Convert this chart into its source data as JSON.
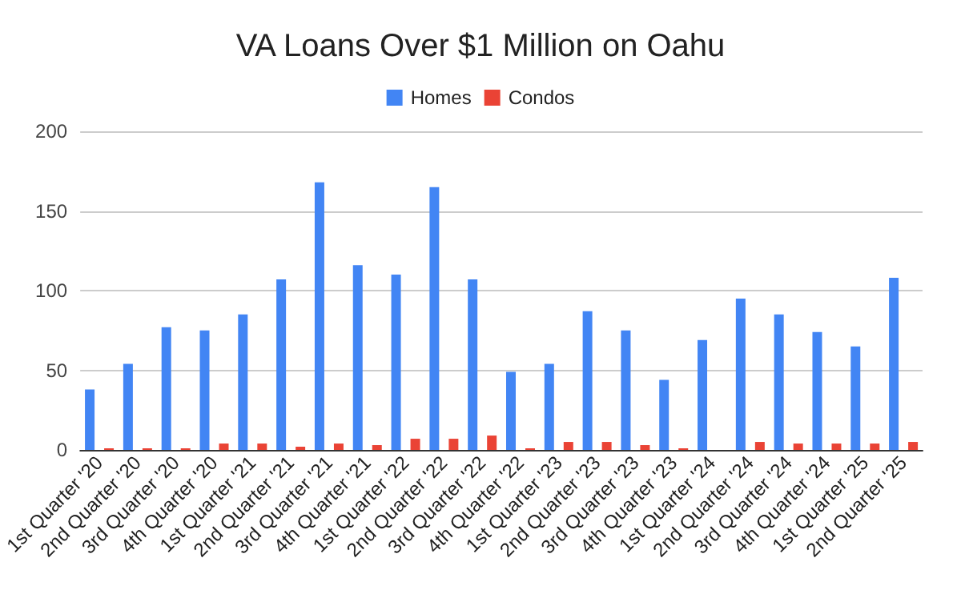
{
  "chart_data": {
    "type": "bar",
    "title": "VA Loans Over $1 Million on Oahu",
    "categories": [
      "1st Quarter '20",
      "2nd Quarter '20",
      "3rd Quarter '20",
      "4th Quarter '20",
      "1st Quarter '21",
      "2nd Quarter '21",
      "3rd Quarter '21",
      "4th Quarter '21",
      "1st Quarter '22",
      "2nd Quarter '22",
      "3rd Quarter '22",
      "4th Quarter '22",
      "1st Quarter '23",
      "2nd Quarter '23",
      "3rd Quarter '23",
      "4th Quarter '23",
      "1st Quarter '24",
      "2nd Quarter '24",
      "3rd Quarter '24",
      "4th Quarter '24",
      "1st Quarter '25",
      "2nd Quarter '25"
    ],
    "series": [
      {
        "name": "Homes",
        "color": "#4285f4",
        "values": [
          38,
          54,
          77,
          75,
          85,
          107,
          168,
          116,
          110,
          165,
          107,
          49,
          54,
          87,
          75,
          44,
          69,
          95,
          85,
          74,
          65,
          108
        ]
      },
      {
        "name": "Condos",
        "color": "#ea4335",
        "values": [
          1,
          1,
          1,
          4,
          4,
          2,
          4,
          3,
          7,
          7,
          9,
          1,
          5,
          5,
          3,
          1,
          0,
          5,
          4,
          4,
          4,
          5
        ]
      }
    ],
    "ylim": [
      0,
      200
    ],
    "yticks": [
      0,
      50,
      100,
      150,
      200
    ],
    "grid": "y",
    "legend": "top"
  }
}
